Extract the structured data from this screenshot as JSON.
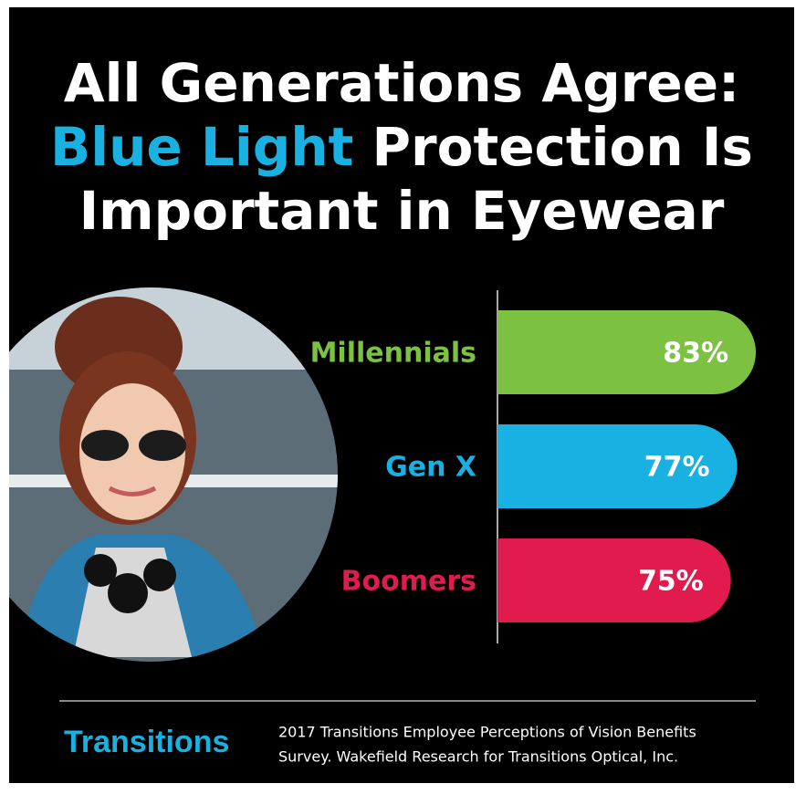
{
  "chart_data": {
    "type": "bar",
    "orientation": "horizontal",
    "title_lines": [
      "All Generations Agree:",
      "Blue Light",
      "Protection Is",
      "Important in Eyewear"
    ],
    "categories": [
      "Millennials",
      "Gen X",
      "Boomers"
    ],
    "values": [
      83,
      77,
      75
    ],
    "value_labels": [
      "83%",
      "77%",
      "75%"
    ],
    "colors": [
      "#7dc142",
      "#19b1e2",
      "#e21b4f"
    ],
    "brand": "Transitions",
    "source": [
      "2017 Transitions Employee Perceptions of Vision Benefits",
      "Survey. Wakefield Research for Transitions Optical, Inc."
    ]
  }
}
